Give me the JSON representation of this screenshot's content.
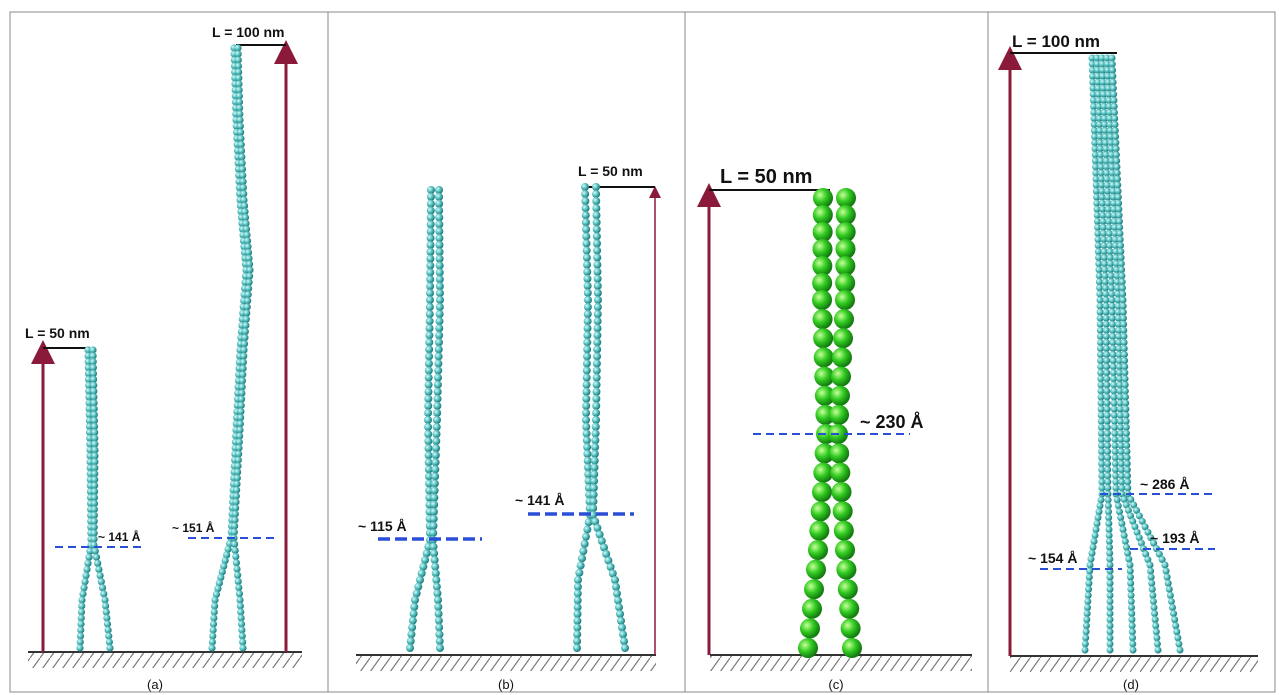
{
  "panels": [
    {
      "caption": "(a)",
      "lengths": [
        "L = 50 nm",
        "L = 100 nm"
      ],
      "widths": [
        "~ 141 Å",
        "~ 151 Å"
      ]
    },
    {
      "caption": "(b)",
      "lengths": [
        "L = 50 nm"
      ],
      "widths": [
        "~ 115 Å",
        "~ 141 Å"
      ]
    },
    {
      "caption": "(c)",
      "lengths": [
        "L = 50 nm"
      ],
      "widths": [
        "~ 230 Å"
      ]
    },
    {
      "caption": "(d)",
      "lengths": [
        "L = 100 nm"
      ],
      "widths": [
        "~ 286 Å",
        "~ 193 Å",
        "~ 154 Å"
      ]
    }
  ]
}
